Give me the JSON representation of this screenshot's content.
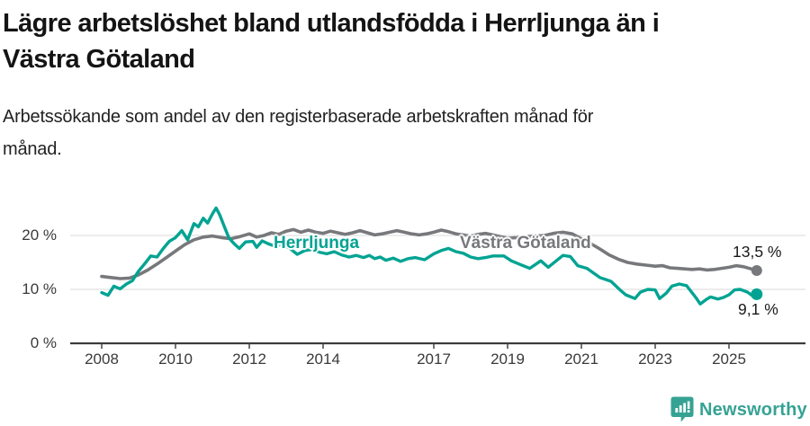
{
  "header": {
    "title": "Lägre arbetslöshet bland utlandsfödda i Herrljunga än i\nVästra Götaland",
    "subtitle": "Arbetssökande som andel av den registerbaserade arbetskraften månad för\nmånad."
  },
  "footer": {
    "brand": "Newsworthy"
  },
  "colors": {
    "accent_teal": "#00a392",
    "line_gray": "#77787b",
    "brand_teal": "#35a294",
    "gridline": "#d9d9d9",
    "axis": "#3c3c3c",
    "text": "#141414"
  },
  "chart_data": {
    "type": "line",
    "title": "Lägre arbetslöshet bland utlandsfödda i Herrljunga än i Västra Götaland",
    "subtitle": "Arbetssökande som andel av den registerbaserade arbetskraften månad för månad.",
    "x_axis": {
      "ticks": [
        2008,
        2010,
        2012,
        2014,
        2017,
        2019,
        2021,
        2023,
        2025
      ],
      "range": [
        2007.2,
        2026.3
      ],
      "grid": false
    },
    "y_axis": {
      "ticks": [
        {
          "value": 0,
          "label": "0 %"
        },
        {
          "value": 10,
          "label": "10 %"
        },
        {
          "value": 20,
          "label": "20 %"
        }
      ],
      "range": [
        0,
        26.5
      ],
      "grid": true
    },
    "legend_position": "inline-labels",
    "series": [
      {
        "name": "Herrljunga",
        "color": "#00a392",
        "end_label": "9,1 %",
        "end_value": 9.1,
        "points": [
          [
            2008.0,
            9.4
          ],
          [
            2008.17,
            8.9
          ],
          [
            2008.33,
            10.6
          ],
          [
            2008.5,
            10.1
          ],
          [
            2008.67,
            11.0
          ],
          [
            2008.83,
            11.6
          ],
          [
            2009.0,
            13.4
          ],
          [
            2009.17,
            14.8
          ],
          [
            2009.33,
            16.2
          ],
          [
            2009.5,
            16.0
          ],
          [
            2009.67,
            17.6
          ],
          [
            2009.83,
            18.9
          ],
          [
            2010.0,
            19.6
          ],
          [
            2010.17,
            20.9
          ],
          [
            2010.33,
            19.2
          ],
          [
            2010.5,
            22.2
          ],
          [
            2010.62,
            21.6
          ],
          [
            2010.75,
            23.2
          ],
          [
            2010.87,
            22.3
          ],
          [
            2011.0,
            24.0
          ],
          [
            2011.1,
            25.1
          ],
          [
            2011.2,
            23.8
          ],
          [
            2011.35,
            21.2
          ],
          [
            2011.45,
            19.5
          ],
          [
            2011.6,
            18.4
          ],
          [
            2011.73,
            17.6
          ],
          [
            2011.9,
            18.8
          ],
          [
            2012.1,
            18.9
          ],
          [
            2012.2,
            17.8
          ],
          [
            2012.35,
            19.0
          ],
          [
            2012.5,
            18.5
          ],
          [
            2012.7,
            18.0
          ],
          [
            2012.9,
            18.4
          ],
          [
            2013.1,
            17.6
          ],
          [
            2013.3,
            16.5
          ],
          [
            2013.5,
            17.2
          ],
          [
            2013.7,
            17.4
          ],
          [
            2013.9,
            16.9
          ],
          [
            2014.1,
            16.6
          ],
          [
            2014.3,
            17.0
          ],
          [
            2014.5,
            16.4
          ],
          [
            2014.7,
            16.0
          ],
          [
            2014.9,
            16.3
          ],
          [
            2015.1,
            15.9
          ],
          [
            2015.25,
            16.3
          ],
          [
            2015.4,
            15.7
          ],
          [
            2015.55,
            16.0
          ],
          [
            2015.7,
            15.4
          ],
          [
            2015.9,
            15.8
          ],
          [
            2016.1,
            15.2
          ],
          [
            2016.3,
            15.7
          ],
          [
            2016.5,
            15.9
          ],
          [
            2016.75,
            15.5
          ],
          [
            2017.0,
            16.6
          ],
          [
            2017.2,
            17.2
          ],
          [
            2017.4,
            17.6
          ],
          [
            2017.6,
            17.0
          ],
          [
            2017.8,
            16.7
          ],
          [
            2018.0,
            16.0
          ],
          [
            2018.2,
            15.7
          ],
          [
            2018.4,
            15.9
          ],
          [
            2018.6,
            16.2
          ],
          [
            2018.9,
            16.2
          ],
          [
            2019.1,
            15.3
          ],
          [
            2019.35,
            14.6
          ],
          [
            2019.6,
            13.9
          ],
          [
            2019.9,
            15.3
          ],
          [
            2020.1,
            14.1
          ],
          [
            2020.3,
            15.2
          ],
          [
            2020.5,
            16.3
          ],
          [
            2020.7,
            16.1
          ],
          [
            2020.9,
            14.4
          ],
          [
            2021.15,
            13.9
          ],
          [
            2021.5,
            12.2
          ],
          [
            2021.8,
            11.5
          ],
          [
            2022.05,
            9.9
          ],
          [
            2022.2,
            9.0
          ],
          [
            2022.45,
            8.3
          ],
          [
            2022.6,
            9.5
          ],
          [
            2022.8,
            10.0
          ],
          [
            2023.0,
            9.9
          ],
          [
            2023.12,
            8.3
          ],
          [
            2023.3,
            9.3
          ],
          [
            2023.45,
            10.6
          ],
          [
            2023.65,
            11.0
          ],
          [
            2023.85,
            10.7
          ],
          [
            2024.1,
            8.5
          ],
          [
            2024.22,
            7.3
          ],
          [
            2024.4,
            8.2
          ],
          [
            2024.5,
            8.6
          ],
          [
            2024.7,
            8.2
          ],
          [
            2024.85,
            8.5
          ],
          [
            2025.0,
            9.0
          ],
          [
            2025.15,
            9.9
          ],
          [
            2025.3,
            10.0
          ],
          [
            2025.5,
            9.5
          ],
          [
            2025.62,
            8.9
          ],
          [
            2025.75,
            9.1
          ]
        ]
      },
      {
        "name": "Västra Götaland",
        "color": "#77787b",
        "end_label": "13,5 %",
        "end_value": 13.5,
        "points": [
          [
            2008.0,
            12.4
          ],
          [
            2008.25,
            12.2
          ],
          [
            2008.5,
            12.0
          ],
          [
            2008.75,
            12.1
          ],
          [
            2009.0,
            12.7
          ],
          [
            2009.25,
            13.6
          ],
          [
            2009.5,
            14.7
          ],
          [
            2009.75,
            15.9
          ],
          [
            2010.0,
            17.1
          ],
          [
            2010.25,
            18.3
          ],
          [
            2010.5,
            19.2
          ],
          [
            2010.75,
            19.7
          ],
          [
            2011.0,
            19.9
          ],
          [
            2011.25,
            19.6
          ],
          [
            2011.5,
            19.4
          ],
          [
            2011.75,
            19.8
          ],
          [
            2012.0,
            20.3
          ],
          [
            2012.2,
            19.7
          ],
          [
            2012.4,
            20.0
          ],
          [
            2012.6,
            20.5
          ],
          [
            2012.8,
            20.2
          ],
          [
            2013.0,
            20.8
          ],
          [
            2013.2,
            21.1
          ],
          [
            2013.4,
            20.6
          ],
          [
            2013.6,
            21.0
          ],
          [
            2013.8,
            20.6
          ],
          [
            2014.0,
            20.4
          ],
          [
            2014.2,
            20.8
          ],
          [
            2014.4,
            20.5
          ],
          [
            2014.6,
            20.2
          ],
          [
            2014.8,
            20.5
          ],
          [
            2015.0,
            20.9
          ],
          [
            2015.2,
            20.5
          ],
          [
            2015.4,
            20.1
          ],
          [
            2015.6,
            20.3
          ],
          [
            2015.8,
            20.6
          ],
          [
            2016.0,
            20.9
          ],
          [
            2016.2,
            20.6
          ],
          [
            2016.4,
            20.3
          ],
          [
            2016.6,
            20.1
          ],
          [
            2016.8,
            20.3
          ],
          [
            2017.0,
            20.6
          ],
          [
            2017.2,
            21.0
          ],
          [
            2017.4,
            20.7
          ],
          [
            2017.6,
            20.3
          ],
          [
            2017.8,
            20.1
          ],
          [
            2018.0,
            19.9
          ],
          [
            2018.2,
            20.2
          ],
          [
            2018.4,
            20.4
          ],
          [
            2018.6,
            20.1
          ],
          [
            2018.8,
            19.8
          ],
          [
            2019.0,
            19.5
          ],
          [
            2019.25,
            19.6
          ],
          [
            2019.5,
            19.8
          ],
          [
            2019.75,
            19.9
          ],
          [
            2020.0,
            20.0
          ],
          [
            2020.25,
            20.4
          ],
          [
            2020.5,
            20.6
          ],
          [
            2020.75,
            20.3
          ],
          [
            2021.0,
            19.4
          ],
          [
            2021.25,
            18.5
          ],
          [
            2021.5,
            17.5
          ],
          [
            2021.75,
            16.4
          ],
          [
            2022.0,
            15.6
          ],
          [
            2022.25,
            15.0
          ],
          [
            2022.5,
            14.7
          ],
          [
            2022.75,
            14.5
          ],
          [
            2023.0,
            14.3
          ],
          [
            2023.2,
            14.4
          ],
          [
            2023.4,
            14.0
          ],
          [
            2023.6,
            13.9
          ],
          [
            2023.8,
            13.8
          ],
          [
            2024.0,
            13.7
          ],
          [
            2024.2,
            13.8
          ],
          [
            2024.4,
            13.6
          ],
          [
            2024.6,
            13.7
          ],
          [
            2024.8,
            13.9
          ],
          [
            2025.0,
            14.1
          ],
          [
            2025.2,
            14.4
          ],
          [
            2025.4,
            14.2
          ],
          [
            2025.6,
            13.8
          ],
          [
            2025.75,
            13.5
          ]
        ]
      }
    ]
  }
}
